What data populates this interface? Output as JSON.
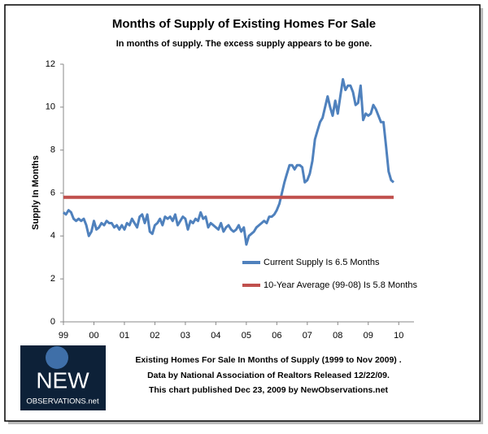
{
  "chart_data": {
    "type": "line",
    "title": "Months of Supply of Existing Homes For Sale",
    "subtitle": "In months of supply. The excess supply appears  to be gone.",
    "y_label": "Supply In Months",
    "footer": [
      "Existing Homes For Sale In Months of Supply (1999 to Nov 2009) .",
      "Data by National Association of Realtors Released 12/22/09.",
      "This chart published Dec 23, 2009 by NewObservations.net"
    ],
    "logo": {
      "top": "NEW",
      "bottom": "OBSERVATIONS.net"
    },
    "xlim": [
      1999,
      2010.5
    ],
    "xticks": [
      {
        "value": 1999,
        "label": "99"
      },
      {
        "value": 2000,
        "label": "00"
      },
      {
        "value": 2001,
        "label": "01"
      },
      {
        "value": 2002,
        "label": "02"
      },
      {
        "value": 2003,
        "label": "03"
      },
      {
        "value": 2004,
        "label": "04"
      },
      {
        "value": 2005,
        "label": "05"
      },
      {
        "value": 2006,
        "label": "06"
      },
      {
        "value": 2007,
        "label": "07"
      },
      {
        "value": 2008,
        "label": "08"
      },
      {
        "value": 2009,
        "label": "09"
      },
      {
        "value": 2010,
        "label": "10"
      }
    ],
    "ylim": [
      0,
      12
    ],
    "yticks": [
      0,
      2,
      4,
      6,
      8,
      10,
      12
    ],
    "grid": false,
    "series": [
      {
        "name": "Current Supply Is 6.5 Months",
        "color": "#4f81bd",
        "x": [
          1999,
          1999.083,
          1999.167,
          1999.25,
          1999.333,
          1999.417,
          1999.5,
          1999.583,
          1999.667,
          1999.75,
          1999.833,
          1999.917,
          2000,
          2000.083,
          2000.167,
          2000.25,
          2000.333,
          2000.417,
          2000.5,
          2000.583,
          2000.667,
          2000.75,
          2000.833,
          2000.917,
          2001,
          2001.083,
          2001.167,
          2001.25,
          2001.333,
          2001.417,
          2001.5,
          2001.583,
          2001.667,
          2001.75,
          2001.833,
          2001.917,
          2002,
          2002.083,
          2002.167,
          2002.25,
          2002.333,
          2002.417,
          2002.5,
          2002.583,
          2002.667,
          2002.75,
          2002.833,
          2002.917,
          2003,
          2003.083,
          2003.167,
          2003.25,
          2003.333,
          2003.417,
          2003.5,
          2003.583,
          2003.667,
          2003.75,
          2003.833,
          2003.917,
          2004,
          2004.083,
          2004.167,
          2004.25,
          2004.333,
          2004.417,
          2004.5,
          2004.583,
          2004.667,
          2004.75,
          2004.833,
          2004.917,
          2005,
          2005.083,
          2005.167,
          2005.25,
          2005.333,
          2005.417,
          2005.5,
          2005.583,
          2005.667,
          2005.75,
          2005.833,
          2005.917,
          2006,
          2006.083,
          2006.167,
          2006.25,
          2006.333,
          2006.417,
          2006.5,
          2006.583,
          2006.667,
          2006.75,
          2006.833,
          2006.917,
          2007,
          2007.083,
          2007.167,
          2007.25,
          2007.333,
          2007.417,
          2007.5,
          2007.583,
          2007.667,
          2007.75,
          2007.833,
          2007.917,
          2008,
          2008.083,
          2008.167,
          2008.25,
          2008.333,
          2008.417,
          2008.5,
          2008.583,
          2008.667,
          2008.75,
          2008.833,
          2008.917,
          2009,
          2009.083,
          2009.167,
          2009.25,
          2009.333,
          2009.417,
          2009.5,
          2009.583,
          2009.667,
          2009.75,
          2009.833
        ],
        "values": [
          5.1,
          5.0,
          5.2,
          5.1,
          4.8,
          4.7,
          4.8,
          4.7,
          4.8,
          4.5,
          4.0,
          4.2,
          4.7,
          4.3,
          4.4,
          4.6,
          4.5,
          4.7,
          4.6,
          4.6,
          4.4,
          4.5,
          4.3,
          4.5,
          4.3,
          4.6,
          4.5,
          4.8,
          4.6,
          4.4,
          4.9,
          5.0,
          4.6,
          5.0,
          4.2,
          4.1,
          4.5,
          4.6,
          4.8,
          4.5,
          4.9,
          4.8,
          4.9,
          4.7,
          5.0,
          4.5,
          4.7,
          4.9,
          4.8,
          4.3,
          4.7,
          4.6,
          4.8,
          4.7,
          5.1,
          4.8,
          4.9,
          4.4,
          4.6,
          4.5,
          4.4,
          4.3,
          4.6,
          4.2,
          4.4,
          4.5,
          4.3,
          4.2,
          4.3,
          4.5,
          4.2,
          4.4,
          3.6,
          4.0,
          4.1,
          4.2,
          4.4,
          4.5,
          4.6,
          4.7,
          4.6,
          4.9,
          4.9,
          5.0,
          5.2,
          5.5,
          6.0,
          6.5,
          6.9,
          7.3,
          7.3,
          7.1,
          7.3,
          7.3,
          7.2,
          6.5,
          6.6,
          6.9,
          7.5,
          8.5,
          8.9,
          9.3,
          9.5,
          10.0,
          10.5,
          10.0,
          9.6,
          10.3,
          9.7,
          10.5,
          11.3,
          10.8,
          11.0,
          11.0,
          10.7,
          10.1,
          10.2,
          11.0,
          9.4,
          9.7,
          9.6,
          9.7,
          10.1,
          9.9,
          9.6,
          9.3,
          9.3,
          8.2,
          7.0,
          6.6,
          6.5
        ]
      },
      {
        "name": "10-Year Average (99-08) Is 5.8 Months",
        "color": "#c0504d",
        "x": [
          1999,
          2009.833
        ],
        "values": [
          5.8,
          5.8
        ]
      }
    ]
  }
}
